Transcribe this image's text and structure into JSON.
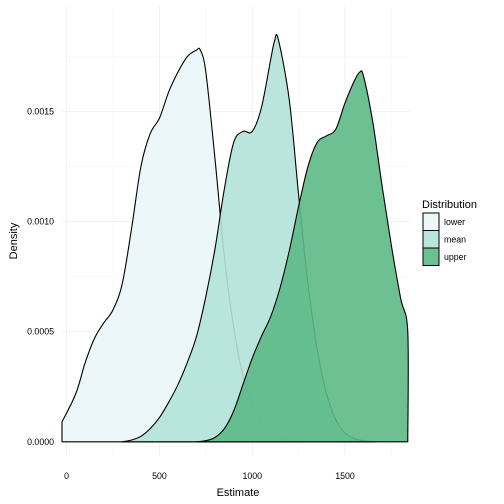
{
  "chart_data": {
    "type": "area",
    "subtype": "density",
    "xlabel": "Estimate",
    "ylabel": "Density",
    "xlim": [
      -25,
      1850
    ],
    "ylim": [
      -6e-05,
      0.00198
    ],
    "x_ticks": [
      0,
      500,
      1000,
      1500
    ],
    "x_tick_labels": [
      "0",
      "500",
      "1000",
      "1500"
    ],
    "y_ticks": [
      0,
      0.0005,
      0.001,
      0.0015
    ],
    "y_tick_labels": [
      "0.0000",
      "0.0005",
      "0.0010",
      "0.0015"
    ],
    "grid": true,
    "legend": {
      "title": "Distribution",
      "position": "right"
    },
    "series": [
      {
        "name": "lower",
        "color": "#e9f6f7",
        "opacity": 0.9,
        "x": [
          -25,
          50,
          100,
          150,
          200,
          250,
          300,
          350,
          400,
          450,
          500,
          550,
          600,
          650,
          700,
          720,
          750,
          800,
          850,
          900,
          950,
          1000,
          1050,
          1100,
          1150,
          1200,
          1275
        ],
        "y": [
          9e-05,
          0.00022,
          0.00036,
          0.00047,
          0.00054,
          0.0006,
          0.00072,
          0.00097,
          0.00125,
          0.0014,
          0.00147,
          0.00159,
          0.00168,
          0.00175,
          0.00178,
          0.00178,
          0.00168,
          0.00128,
          0.00084,
          0.00052,
          0.0003,
          0.00017,
          9e-05,
          4e-05,
          1.5e-05,
          5e-06,
          0
        ]
      },
      {
        "name": "mean",
        "color": "#b2e2d8",
        "opacity": 0.9,
        "x": [
          300,
          350,
          400,
          450,
          500,
          550,
          600,
          650,
          700,
          750,
          800,
          850,
          900,
          950,
          1000,
          1050,
          1100,
          1120,
          1140,
          1200,
          1250,
          1300,
          1350,
          1400,
          1450,
          1500,
          1550,
          1600,
          1660
        ],
        "y": [
          0,
          8e-06,
          2.5e-05,
          6e-05,
          0.00011,
          0.00018,
          0.00026,
          0.00036,
          0.00048,
          0.00066,
          0.00088,
          0.00115,
          0.00136,
          0.00141,
          0.00141,
          0.00152,
          0.00174,
          0.00182,
          0.00183,
          0.00155,
          0.00112,
          0.00072,
          0.00042,
          0.00022,
          0.0001,
          4e-05,
          1.5e-05,
          5e-06,
          0
        ]
      },
      {
        "name": "upper",
        "color": "#5cb986",
        "opacity": 0.9,
        "x": [
          700,
          750,
          800,
          850,
          900,
          950,
          1000,
          1050,
          1100,
          1150,
          1200,
          1250,
          1300,
          1350,
          1400,
          1450,
          1500,
          1550,
          1580,
          1600,
          1650,
          1700,
          1750,
          1800,
          1838,
          1838
        ],
        "y": [
          0,
          5e-06,
          2e-05,
          6e-05,
          0.00014,
          0.00026,
          0.00038,
          0.00048,
          0.00057,
          0.0007,
          0.00087,
          0.00107,
          0.00125,
          0.00136,
          0.00139,
          0.00142,
          0.00154,
          0.00164,
          0.00168,
          0.00166,
          0.00145,
          0.00116,
          0.00089,
          0.00065,
          0.0005,
          0
        ]
      }
    ]
  }
}
